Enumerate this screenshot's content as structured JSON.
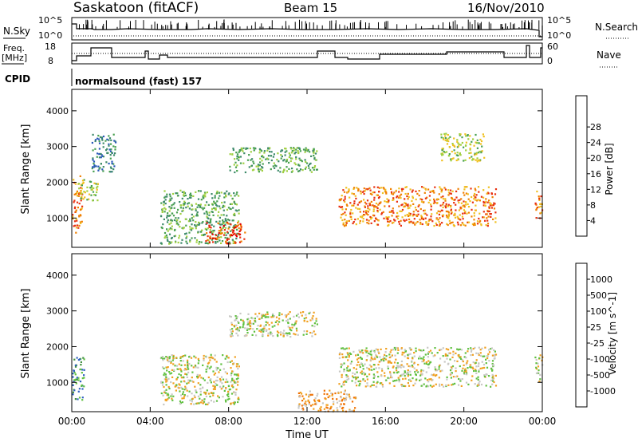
{
  "header": {
    "station": "Saskatoon (fitACF)",
    "beam": "Beam 15",
    "date": "16/Nov/2010"
  },
  "strip": {
    "nsky_label": "N.Sky",
    "nsearch_label": "N.Search",
    "nsky_ticks": [
      "10^5",
      "10^0"
    ],
    "nsearch_ticks": [
      "10^5",
      "10^0"
    ],
    "freq_label_line1": "Freq.",
    "freq_label_line2": "[MHz]",
    "freq_ticks": [
      "18",
      "8"
    ],
    "nave_label": "Nave",
    "nave_ticks": [
      "60",
      "0"
    ],
    "cpid_label": "CPID",
    "cpid_value": "normalsound (fast) 157"
  },
  "chart_data": [
    {
      "type": "heatmap",
      "name": "power",
      "ylabel": "Slant Range [km]",
      "xlabel": "Time UT",
      "x_ticks": [
        "00:00",
        "04:00",
        "08:00",
        "12:00",
        "16:00",
        "20:00",
        "00:00"
      ],
      "x_range_hours": [
        0,
        24
      ],
      "y_ticks": [
        1000,
        2000,
        3000,
        4000
      ],
      "y_range_km": [
        180,
        4600
      ],
      "colorbar": {
        "label": "Power [dB]",
        "ticks": [
          "4",
          "8",
          "12",
          "16",
          "20",
          "24",
          "28"
        ],
        "colors": [
          "#0000ff",
          "#2a58b8",
          "#3e8a6a",
          "#48a050",
          "#a0d040",
          "#f0c020",
          "#f08000",
          "#e83010",
          "#e00000"
        ]
      },
      "regions": [
        {
          "t": [
            0.0,
            0.5
          ],
          "r": [
            600,
            2200
          ],
          "level": 6
        },
        {
          "t": [
            0.2,
            1.3
          ],
          "r": [
            1500,
            2100
          ],
          "level": 4
        },
        {
          "t": [
            1.0,
            2.2
          ],
          "r": [
            2300,
            3400
          ],
          "level": 2
        },
        {
          "t": [
            4.5,
            8.5
          ],
          "r": [
            300,
            1800
          ],
          "level": 3
        },
        {
          "t": [
            6.8,
            8.8
          ],
          "r": [
            300,
            900
          ],
          "level": 7
        },
        {
          "t": [
            8.0,
            12.5
          ],
          "r": [
            2300,
            3000
          ],
          "level": 3
        },
        {
          "t": [
            13.6,
            21.6
          ],
          "r": [
            800,
            1900
          ],
          "level": 6
        },
        {
          "t": [
            18.8,
            21.0
          ],
          "r": [
            2600,
            3400
          ],
          "level": 4
        },
        {
          "t": [
            23.6,
            24.0
          ],
          "r": [
            1000,
            1800
          ],
          "level": 6
        }
      ]
    },
    {
      "type": "heatmap",
      "name": "velocity",
      "ylabel": "Slant Range [km]",
      "xlabel": "Time UT",
      "x_ticks": [
        "00:00",
        "04:00",
        "08:00",
        "12:00",
        "16:00",
        "20:00",
        "00:00"
      ],
      "x_range_hours": [
        0,
        24
      ],
      "y_ticks": [
        1000,
        2000,
        3000,
        4000
      ],
      "y_range_km": [
        180,
        4600
      ],
      "colorbar": {
        "label": "Velocity [m s^-1]",
        "ticks": [
          "1000",
          "500",
          "100",
          "25",
          "-25",
          "-100",
          "-500",
          "-1000"
        ],
        "colors": [
          "#1030b0",
          "#3060c0",
          "#409040",
          "#60c040",
          "#c8c8c4",
          "#f0a020",
          "#f07000",
          "#e02000",
          "#e00000"
        ]
      },
      "regions": [
        {
          "t": [
            0.0,
            0.6
          ],
          "r": [
            500,
            1800
          ],
          "level": 2
        },
        {
          "t": [
            4.5,
            8.5
          ],
          "r": [
            400,
            1800
          ],
          "level": 4
        },
        {
          "t": [
            8.0,
            12.5
          ],
          "r": [
            2300,
            3000
          ],
          "level": 4
        },
        {
          "t": [
            13.6,
            21.6
          ],
          "r": [
            900,
            2000
          ],
          "level": 4
        },
        {
          "t": [
            11.5,
            14.5
          ],
          "r": [
            200,
            800
          ],
          "level": 5
        },
        {
          "t": [
            23.6,
            24.0
          ],
          "r": [
            1000,
            1800
          ],
          "level": 4
        }
      ]
    }
  ]
}
